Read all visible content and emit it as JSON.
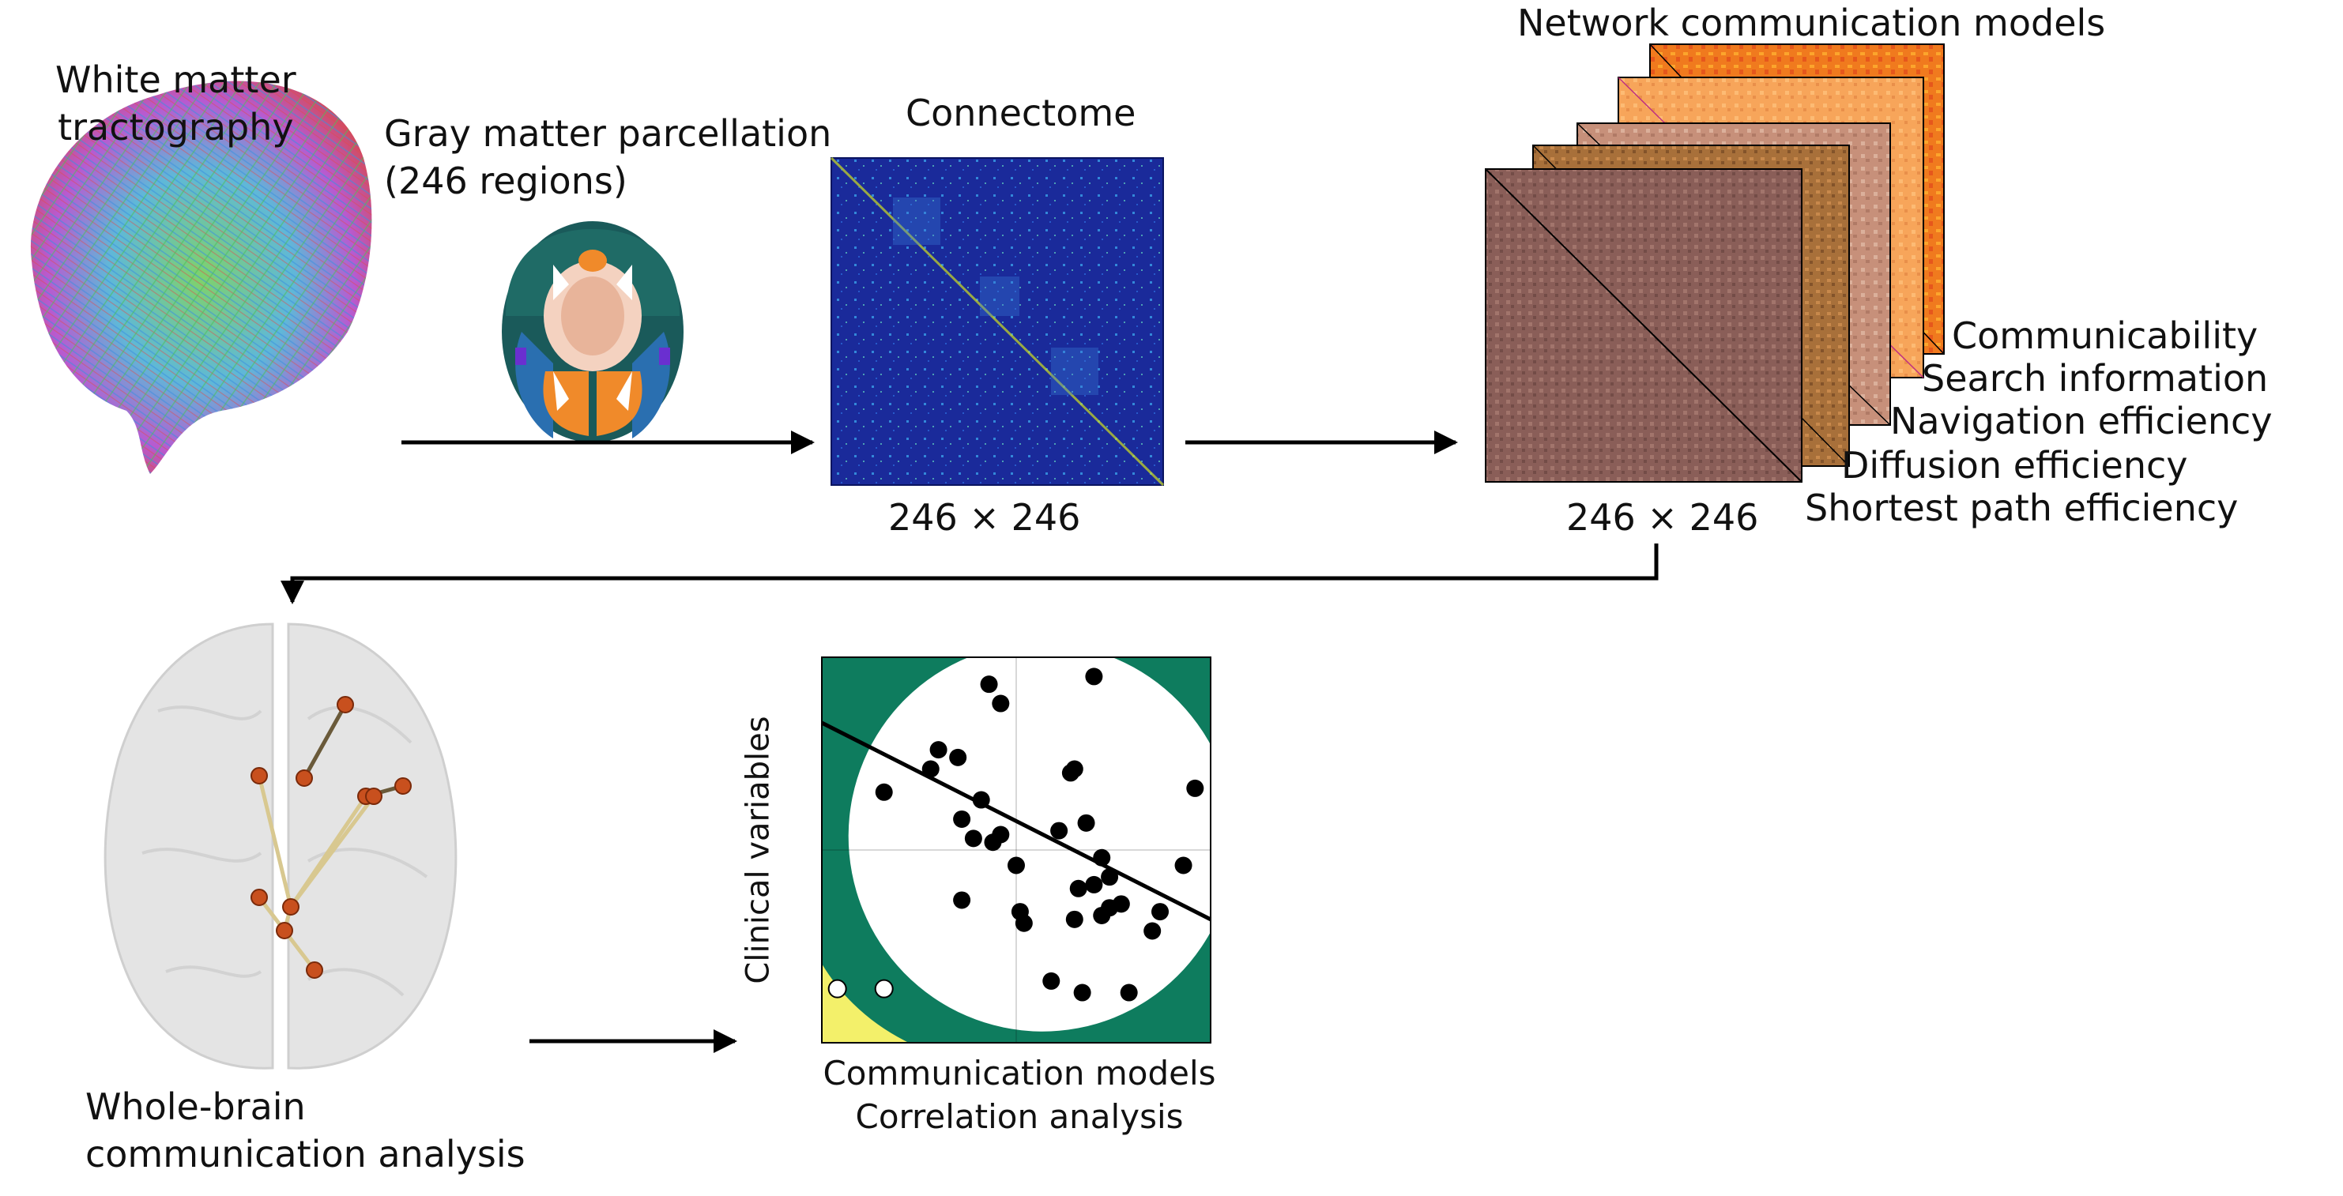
{
  "labels": {
    "tractography_line1": "White matter",
    "tractography_line2": "tractography",
    "parcellation_line1": "Gray matter parcellation",
    "parcellation_line2": "(246 regions)",
    "connectome_title": "Connectome",
    "connectome_dim": "246 × 246",
    "models_title": "Network communication models",
    "models_dim": "246 × 246",
    "analysis_line1": "Whole-brain",
    "analysis_line2": "communication analysis",
    "scatter_ylabel": "Clinical variables",
    "scatter_xlabel1": "Communication models",
    "scatter_xlabel2": "Correlation analysis"
  },
  "models": [
    "Communicability",
    "Search information",
    "Navigation efficiency",
    "Diffusion efficiency",
    "Shortest path efficiency"
  ],
  "colors": {
    "connectome_bg": "#1a2a9a",
    "scatter_green": "#0e7c5e",
    "scatter_yellow": "#f3f06a",
    "node": "#c8501e"
  },
  "chart_data": {
    "type": "scatter",
    "title": "",
    "xlabel": "Communication models",
    "ylabel": "Clinical variables",
    "xlim": [
      0,
      10
    ],
    "ylim": [
      0,
      10
    ],
    "points": [
      [
        4.3,
        9.3
      ],
      [
        7.0,
        9.5
      ],
      [
        4.6,
        8.8
      ],
      [
        3.0,
        7.6
      ],
      [
        3.5,
        7.4
      ],
      [
        2.8,
        7.1
      ],
      [
        6.5,
        7.1
      ],
      [
        6.4,
        7.0
      ],
      [
        1.6,
        6.5
      ],
      [
        9.6,
        6.6
      ],
      [
        4.1,
        6.3
      ],
      [
        3.6,
        5.8
      ],
      [
        4.6,
        5.4
      ],
      [
        6.1,
        5.5
      ],
      [
        6.8,
        5.7
      ],
      [
        3.9,
        5.3
      ],
      [
        4.4,
        5.2
      ],
      [
        7.2,
        4.8
      ],
      [
        5.0,
        4.6
      ],
      [
        9.3,
        4.6
      ],
      [
        7.4,
        4.3
      ],
      [
        6.6,
        4.0
      ],
      [
        7.0,
        4.1
      ],
      [
        3.6,
        3.7
      ],
      [
        5.1,
        3.4
      ],
      [
        7.4,
        3.5
      ],
      [
        8.7,
        3.4
      ],
      [
        7.7,
        3.6
      ],
      [
        6.5,
        3.2
      ],
      [
        7.2,
        3.3
      ],
      [
        5.2,
        3.1
      ],
      [
        8.5,
        2.9
      ],
      [
        5.9,
        1.6
      ],
      [
        6.7,
        1.3
      ],
      [
        7.9,
        1.3
      ]
    ],
    "outliers": [
      [
        0.4,
        1.4
      ],
      [
        1.6,
        1.4
      ]
    ],
    "fit_line": [
      [
        0,
        8.3
      ],
      [
        10,
        3.2
      ]
    ]
  }
}
